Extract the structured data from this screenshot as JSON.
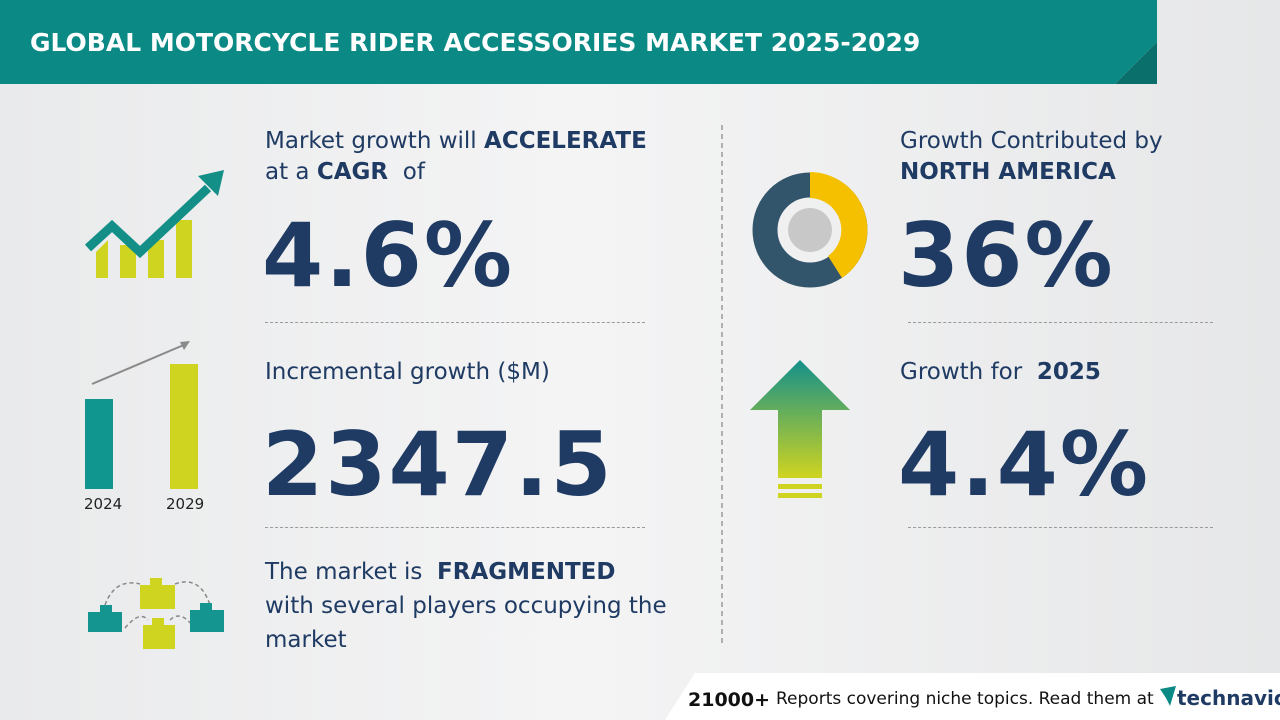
{
  "header": {
    "title": "GLOBAL MOTORCYCLE RIDER ACCESSORIES MARKET 2025-2029"
  },
  "cagr": {
    "line1": "Market growth will",
    "emphasis1": "ACCELERATE",
    "line2a": "at a",
    "emphasis2": "CAGR",
    "line2b": "of",
    "value": "4.6%"
  },
  "incremental": {
    "label": "Incremental growth ($M)",
    "value": "2347.5",
    "year_start": "2024",
    "year_end": "2029"
  },
  "structure": {
    "lead": "The market is",
    "emphasis": "FRAGMENTED",
    "rest": "with several players occupying the market"
  },
  "region": {
    "label": "Growth Contributed by",
    "name": "NORTH AMERICA",
    "value": "36%"
  },
  "yoy": {
    "label": "Growth for",
    "year": "2025",
    "value": "4.4%"
  },
  "footer": {
    "count": "21000+",
    "text": "Reports covering niche topics. Read them at",
    "brand": "technavio"
  }
}
